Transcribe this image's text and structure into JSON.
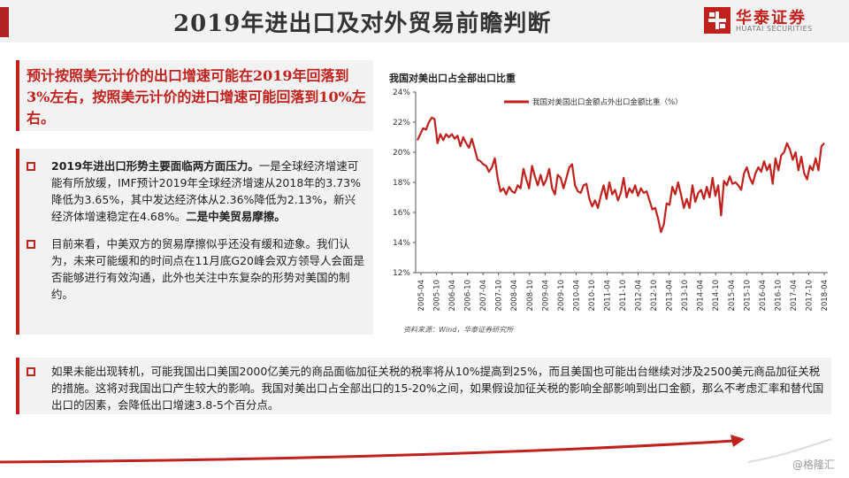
{
  "header": {
    "title": "2019年进出口及对外贸易前瞻判断",
    "logo_cn": "华泰证券",
    "logo_en": "HUATAI SECURITIES"
  },
  "top_box": {
    "text": "预计按照美元计价的出口增速可能在2019年回落到3%左右，按照美元计价的进口增速可能回落到10%左右。"
  },
  "left_box": {
    "bullet1_bold": "2019年进出口形势主要面临两方面压力。",
    "bullet1_text": "一是全球经济增速可能有所放缓，IMF预计2019年全球经济增速从2018年的3.73%降低为3.65%，其中发达经济体从2.36%降低为2.13%，新兴经济体增速稳定在4.68%。",
    "bullet1_bold2": "二是中美贸易摩擦。",
    "bullet2_text": "目前来看，中美双方的贸易摩擦似乎还没有缓和迹象。我们认为，未来可能缓和的时间点在11月底G20峰会双方领导人会面是否能够进行有效沟通，此外也关注中东复杂的形势对美国的制约。"
  },
  "bottom_box": {
    "text": "如果未能出现转机，可能我国出口美国2000亿美元的商品面临加征关税的税率将从10%提高到25%，而且美国也可能出台继续对涉及2500美元商品加征关税的措施。这将对我国出口产生较大的影响。我国对美出口占全部出口的15-20%之间，如果假设加征关税的影响全部影响到出口金额，那么不考虑汇率和替代国出口的因素，会降低出口增速3.8-5个百分点。"
  },
  "watermark": "@格隆汇",
  "colors": {
    "accent": "#c0211c",
    "box_bg": "#f2f2f2"
  },
  "chart_data": {
    "type": "line",
    "title": "我国对美出口占全部出口比重",
    "source": "资料来源：Wind，华泰证券研究所",
    "ylim": [
      12,
      24
    ],
    "yticks": [
      "24%",
      "22%",
      "20%",
      "18%",
      "16%",
      "14%",
      "12%"
    ],
    "ytick_values": [
      24,
      22,
      20,
      18,
      16,
      14,
      12
    ],
    "xticks": [
      "2005-04",
      "2005-10",
      "2006-04",
      "2006-10",
      "2007-04",
      "2007-10",
      "2008-04",
      "2008-10",
      "2009-04",
      "2009-10",
      "2010-04",
      "2010-10",
      "2011-04",
      "2011-10",
      "2012-04",
      "2012-10",
      "2013-04",
      "2013-10",
      "2014-04",
      "2014-10",
      "2015-04",
      "2015-10",
      "2016-04",
      "2016-10",
      "2017-04",
      "2017-10",
      "2018-04"
    ],
    "series": [
      {
        "name": "我国对美国出口金额占外出口金额比重（%）",
        "color": "#c0211c",
        "values": [
          20.8,
          21.2,
          21.6,
          21.5,
          22.0,
          22.3,
          22.2,
          20.6,
          21.2,
          20.8,
          21.2,
          21.0,
          21.2,
          20.9,
          21.1,
          20.4,
          21.0,
          20.6,
          20.3,
          20.9,
          20.2,
          19.5,
          19.4,
          19.2,
          19.1,
          18.7,
          19.0,
          19.6,
          18.3,
          17.4,
          17.6,
          17.2,
          17.7,
          17.4,
          17.3,
          17.8,
          17.6,
          18.9,
          18.2,
          17.6,
          19.1,
          18.4,
          17.8,
          18.5,
          17.8,
          18.2,
          18.9,
          17.6,
          17.2,
          18.5,
          18.3,
          17.6,
          18.3,
          19.0,
          19.2,
          17.8,
          17.4,
          17.3,
          17.8,
          17.9,
          16.9,
          16.4,
          16.8,
          16.3,
          17.1,
          17.8,
          16.9,
          18.0,
          17.2,
          17.5,
          16.8,
          17.3,
          18.3,
          17.0,
          17.6,
          17.3,
          17.8,
          17.1,
          17.6,
          17.3,
          17.4,
          16.8,
          16.2,
          16.3,
          15.6,
          14.7,
          15.2,
          16.6,
          16.5,
          17.7,
          17.2,
          18.0,
          17.2,
          16.3,
          16.9,
          16.3,
          17.8,
          16.7,
          17.3,
          17.5,
          16.9,
          17.7,
          17.0,
          18.3,
          17.1,
          17.8,
          15.8,
          18.1,
          17.8,
          18.4,
          17.9,
          18.0,
          17.8,
          17.5,
          18.6,
          19.0,
          18.3,
          17.9,
          18.6,
          19.0,
          18.7,
          19.4,
          18.8,
          19.2,
          17.9,
          19.6,
          18.8,
          19.8,
          20.0,
          20.6,
          20.2,
          19.5,
          20.0,
          18.8,
          19.7,
          18.6,
          18.2,
          19.1,
          18.8,
          19.6,
          18.8,
          20.4,
          20.6
        ]
      }
    ]
  }
}
